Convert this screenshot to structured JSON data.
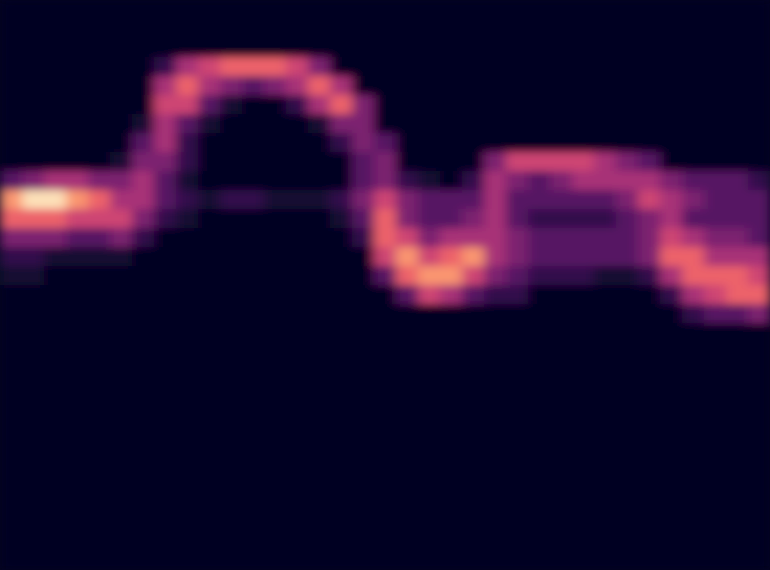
{
  "chart_data": {
    "type": "heatmap",
    "tick_labels": false,
    "zlim": [
      0,
      9
    ],
    "cells": [
      [
        0,
        0,
        0,
        0,
        0,
        0,
        0,
        0,
        0,
        0,
        0,
        0,
        0,
        0,
        0,
        0,
        0,
        0,
        0,
        0,
        0,
        0,
        0,
        0,
        0,
        0,
        0,
        0,
        0,
        0,
        0,
        0,
        0,
        0,
        0
      ],
      [
        0,
        0,
        0,
        0,
        0,
        0,
        0,
        0,
        0,
        0,
        0,
        0,
        0,
        0,
        0,
        0,
        0,
        0,
        0,
        0,
        0,
        0,
        0,
        0,
        0,
        0,
        0,
        0,
        0,
        0,
        0,
        0,
        0,
        0,
        0
      ],
      [
        0,
        0,
        0,
        0,
        0,
        0,
        0,
        0,
        0,
        0,
        0,
        0,
        0,
        0,
        0,
        0,
        0,
        0,
        0,
        0,
        0,
        0,
        0,
        0,
        0,
        0,
        0,
        0,
        0,
        0,
        0,
        0,
        0,
        0,
        0
      ],
      [
        0,
        0,
        0,
        0,
        0,
        0,
        0,
        2,
        5,
        6,
        7,
        7,
        7,
        6,
        4,
        0,
        0,
        0,
        0,
        0,
        0,
        0,
        0,
        0,
        0,
        0,
        0,
        0,
        0,
        0,
        0,
        0,
        0,
        0,
        0
      ],
      [
        0,
        0,
        0,
        0,
        0,
        0,
        0,
        5,
        7,
        5,
        4,
        3,
        4,
        5,
        7,
        5,
        0,
        0,
        0,
        0,
        0,
        0,
        0,
        0,
        0,
        0,
        0,
        0,
        0,
        0,
        0,
        0,
        0,
        0,
        0
      ],
      [
        0,
        0,
        0,
        0,
        0,
        0,
        0,
        6,
        6,
        3,
        1,
        0,
        0,
        2,
        5,
        7,
        4,
        0,
        0,
        0,
        0,
        0,
        0,
        0,
        0,
        0,
        0,
        0,
        0,
        0,
        0,
        0,
        0,
        0,
        0
      ],
      [
        0,
        0,
        0,
        0,
        0,
        0,
        1,
        5,
        3,
        1,
        0,
        0,
        0,
        0,
        1,
        4,
        4,
        0,
        0,
        0,
        0,
        0,
        0,
        0,
        0,
        0,
        0,
        0,
        0,
        0,
        0,
        0,
        0,
        0,
        0
      ],
      [
        0,
        0,
        0,
        0,
        0,
        0,
        3,
        5,
        2,
        0,
        0,
        0,
        0,
        0,
        0,
        2,
        4,
        3,
        0,
        0,
        0,
        0,
        0,
        0,
        0,
        0,
        0,
        0,
        0,
        0,
        0,
        0,
        0,
        0,
        0
      ],
      [
        0,
        0,
        0,
        0,
        0,
        1,
        4,
        4,
        2,
        0,
        0,
        0,
        0,
        0,
        0,
        0,
        3,
        4,
        0,
        0,
        0,
        0,
        4,
        6,
        6,
        6,
        6,
        5,
        4,
        3,
        0,
        0,
        0,
        0,
        0
      ],
      [
        3,
        4,
        5,
        5,
        4,
        4,
        5,
        3,
        1,
        0,
        0,
        0,
        0,
        0,
        0,
        0,
        3,
        4,
        2,
        1,
        0,
        2,
        5,
        4,
        3,
        4,
        5,
        5,
        5,
        5,
        4,
        3,
        3,
        3,
        2
      ],
      [
        8,
        9,
        9,
        8,
        7,
        5,
        5,
        3,
        2,
        1,
        2,
        2,
        1,
        1,
        1,
        2,
        4,
        6,
        4,
        3,
        3,
        3,
        5,
        3,
        3,
        3,
        3,
        3,
        4,
        6,
        5,
        4,
        3,
        3,
        3
      ],
      [
        7,
        7,
        7,
        6,
        6,
        6,
        4,
        2,
        1,
        0,
        0,
        0,
        0,
        0,
        0,
        1,
        3,
        7,
        4,
        3,
        3,
        4,
        5,
        3,
        2,
        2,
        2,
        2,
        3,
        4,
        5,
        3,
        3,
        3,
        3
      ],
      [
        4,
        4,
        4,
        3,
        3,
        4,
        2,
        0,
        0,
        0,
        0,
        0,
        0,
        0,
        0,
        0,
        2,
        7,
        6,
        4,
        5,
        5,
        5,
        4,
        3,
        3,
        3,
        3,
        3,
        4,
        6,
        5,
        4,
        4,
        3
      ],
      [
        2,
        2,
        1,
        1,
        1,
        1,
        0,
        0,
        0,
        0,
        0,
        0,
        0,
        0,
        0,
        0,
        0,
        6,
        8,
        6,
        7,
        8,
        5,
        4,
        3,
        3,
        3,
        3,
        3,
        4,
        7,
        7,
        5,
        5,
        5
      ],
      [
        1,
        1,
        0,
        0,
        0,
        0,
        0,
        0,
        0,
        0,
        0,
        0,
        0,
        0,
        0,
        0,
        0,
        3,
        7,
        8,
        8,
        6,
        4,
        3,
        2,
        2,
        2,
        1,
        1,
        2,
        5,
        7,
        7,
        7,
        6
      ],
      [
        0,
        0,
        0,
        0,
        0,
        0,
        0,
        0,
        0,
        0,
        0,
        0,
        0,
        0,
        0,
        0,
        0,
        0,
        3,
        6,
        5,
        3,
        2,
        2,
        0,
        0,
        0,
        0,
        0,
        0,
        2,
        5,
        6,
        7,
        7
      ],
      [
        0,
        0,
        0,
        0,
        0,
        0,
        0,
        0,
        0,
        0,
        0,
        0,
        0,
        0,
        0,
        0,
        0,
        0,
        0,
        0,
        0,
        0,
        0,
        0,
        0,
        0,
        0,
        0,
        0,
        0,
        0,
        2,
        3,
        3,
        4
      ],
      [
        0,
        0,
        0,
        0,
        0,
        0,
        0,
        0,
        0,
        0,
        0,
        0,
        0,
        0,
        0,
        0,
        0,
        0,
        0,
        0,
        0,
        0,
        0,
        0,
        0,
        0,
        0,
        0,
        0,
        0,
        0,
        0,
        0,
        0,
        0
      ],
      [
        0,
        0,
        0,
        0,
        0,
        0,
        0,
        0,
        0,
        0,
        0,
        0,
        0,
        0,
        0,
        0,
        0,
        0,
        0,
        0,
        0,
        0,
        0,
        0,
        0,
        0,
        0,
        0,
        0,
        0,
        0,
        0,
        0,
        0,
        0
      ],
      [
        0,
        0,
        0,
        0,
        0,
        0,
        0,
        0,
        0,
        0,
        0,
        0,
        0,
        0,
        0,
        0,
        0,
        0,
        0,
        0,
        0,
        0,
        0,
        0,
        0,
        0,
        0,
        0,
        0,
        0,
        0,
        0,
        0,
        0,
        0
      ],
      [
        0,
        0,
        0,
        0,
        0,
        0,
        0,
        0,
        0,
        0,
        0,
        0,
        0,
        0,
        0,
        0,
        0,
        0,
        0,
        0,
        0,
        0,
        0,
        0,
        0,
        0,
        0,
        0,
        0,
        0,
        0,
        0,
        0,
        0,
        0
      ],
      [
        0,
        0,
        0,
        0,
        0,
        0,
        0,
        0,
        0,
        0,
        0,
        0,
        0,
        0,
        0,
        0,
        0,
        0,
        0,
        0,
        0,
        0,
        0,
        0,
        0,
        0,
        0,
        0,
        0,
        0,
        0,
        0,
        0,
        0,
        0
      ],
      [
        0,
        0,
        0,
        0,
        0,
        0,
        0,
        0,
        0,
        0,
        0,
        0,
        0,
        0,
        0,
        0,
        0,
        0,
        0,
        0,
        0,
        0,
        0,
        0,
        0,
        0,
        0,
        0,
        0,
        0,
        0,
        0,
        0,
        0,
        0
      ],
      [
        0,
        0,
        0,
        0,
        0,
        0,
        0,
        0,
        0,
        0,
        0,
        0,
        0,
        0,
        0,
        0,
        0,
        0,
        0,
        0,
        0,
        0,
        0,
        0,
        0,
        0,
        0,
        0,
        0,
        0,
        0,
        0,
        0,
        0,
        0
      ],
      [
        0,
        0,
        0,
        0,
        0,
        0,
        0,
        0,
        0,
        0,
        0,
        0,
        0,
        0,
        0,
        0,
        0,
        0,
        0,
        0,
        0,
        0,
        0,
        0,
        0,
        0,
        0,
        0,
        0,
        0,
        0,
        0,
        0,
        0,
        0
      ],
      [
        0,
        0,
        0,
        0,
        0,
        0,
        0,
        0,
        0,
        0,
        0,
        0,
        0,
        0,
        0,
        0,
        0,
        0,
        0,
        0,
        0,
        0,
        0,
        0,
        0,
        0,
        0,
        0,
        0,
        0,
        0,
        0,
        0,
        0,
        0
      ],
      [
        0,
        0,
        0,
        0,
        0,
        0,
        0,
        0,
        0,
        0,
        0,
        0,
        0,
        0,
        0,
        0,
        0,
        0,
        0,
        0,
        0,
        0,
        0,
        0,
        0,
        0,
        0,
        0,
        0,
        0,
        0,
        0,
        0,
        0,
        0
      ],
      [
        0,
        0,
        0,
        0,
        0,
        0,
        0,
        0,
        0,
        0,
        0,
        0,
        0,
        0,
        0,
        0,
        0,
        0,
        0,
        0,
        0,
        0,
        0,
        0,
        0,
        0,
        0,
        0,
        0,
        0,
        0,
        0,
        0,
        0,
        0
      ],
      [
        0,
        0,
        0,
        0,
        0,
        0,
        0,
        0,
        0,
        0,
        0,
        0,
        0,
        0,
        0,
        0,
        0,
        0,
        0,
        0,
        0,
        0,
        0,
        0,
        0,
        0,
        0,
        0,
        0,
        0,
        0,
        0,
        0,
        0,
        0
      ],
      [
        0,
        0,
        0,
        0,
        0,
        0,
        0,
        0,
        0,
        0,
        0,
        0,
        0,
        0,
        0,
        0,
        0,
        0,
        0,
        0,
        0,
        0,
        0,
        0,
        0,
        0,
        0,
        0,
        0,
        0,
        0,
        0,
        0,
        0,
        0
      ]
    ]
  }
}
